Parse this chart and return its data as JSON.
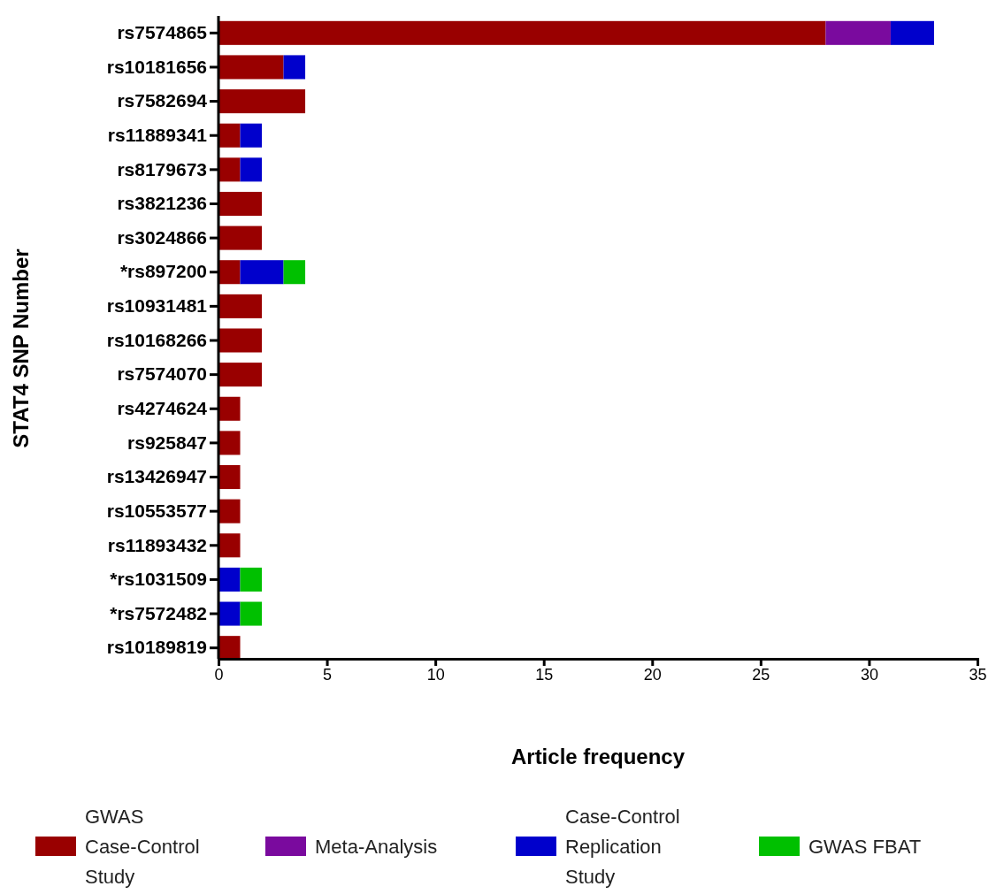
{
  "chart_data": {
    "type": "bar",
    "orientation": "horizontal",
    "stacked": true,
    "xlabel": "Article frequency",
    "ylabel": "STAT4 SNP Number",
    "categories": [
      "rs7574865",
      "rs10181656",
      "rs7582694",
      "rs11889341",
      "rs8179673",
      "rs3821236",
      "rs3024866",
      "*rs897200",
      "rs10931481",
      "rs10168266",
      "rs7574070",
      "rs4274624",
      "rs925847",
      "rs13426947",
      "rs10553577",
      "rs11893432",
      "*rs1031509",
      "*rs7572482",
      "rs10189819"
    ],
    "series": [
      {
        "name": "GWAS Case-Control Study",
        "color": "#990000",
        "values": [
          28,
          3,
          4,
          1,
          1,
          2,
          2,
          1,
          2,
          2,
          2,
          1,
          1,
          1,
          1,
          1,
          0,
          0,
          1
        ]
      },
      {
        "name": "Meta-Analysis",
        "color": "#7a0a9e",
        "values": [
          3,
          0,
          0,
          0,
          0,
          0,
          0,
          0,
          0,
          0,
          0,
          0,
          0,
          0,
          0,
          0,
          0,
          0,
          0
        ]
      },
      {
        "name": "Case-Control Replication Study",
        "color": "#0000cc",
        "values": [
          2,
          1,
          0,
          1,
          1,
          0,
          0,
          2,
          0,
          0,
          0,
          0,
          0,
          0,
          0,
          0,
          1,
          1,
          0
        ]
      },
      {
        "name": "GWAS FBAT",
        "color": "#00c000",
        "values": [
          0,
          0,
          0,
          0,
          0,
          0,
          0,
          1,
          0,
          0,
          0,
          0,
          0,
          0,
          0,
          0,
          1,
          1,
          0
        ]
      }
    ],
    "xlim": [
      0,
      35
    ],
    "xticks": [
      0,
      5,
      10,
      15,
      20,
      25,
      30,
      35
    ],
    "grid": false,
    "legend": "bottom"
  }
}
